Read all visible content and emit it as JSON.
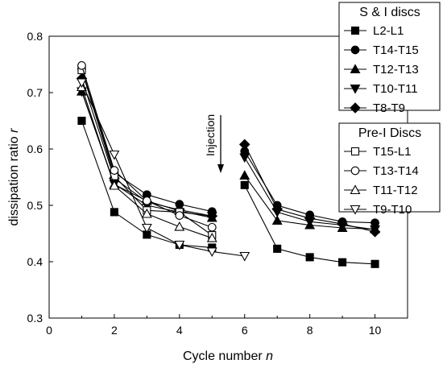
{
  "chart_data": {
    "type": "line",
    "xlabel_prefix": "Cycle number ",
    "xlabel_var": "n",
    "ylabel_prefix": "dissipation ratio ",
    "ylabel_var": "r",
    "xlim": [
      0,
      11
    ],
    "ylim": [
      0.3,
      0.8
    ],
    "xticks": [
      0,
      2,
      4,
      6,
      8,
      10
    ],
    "yticks": [
      0.3,
      0.4,
      0.5,
      0.6,
      0.7,
      0.8
    ],
    "annotation": "Injection",
    "legend_groups": [
      {
        "title": "S & I discs",
        "series": [
          0,
          1,
          2,
          3,
          4
        ]
      },
      {
        "title": "Pre-I Discs",
        "series": [
          5,
          6,
          7,
          8
        ]
      }
    ],
    "series": [
      {
        "name": "L2-L1",
        "marker": "square",
        "filled": true,
        "x": [
          1,
          2,
          3,
          4,
          5,
          6,
          7,
          8,
          9,
          10
        ],
        "y": [
          0.65,
          0.488,
          0.448,
          0.43,
          0.425,
          0.536,
          0.423,
          0.408,
          0.399,
          0.396
        ]
      },
      {
        "name": "T14-T15",
        "marker": "circle",
        "filled": true,
        "x": [
          1,
          2,
          3,
          4,
          5,
          6,
          7,
          8,
          9,
          10
        ],
        "y": [
          0.742,
          0.558,
          0.519,
          0.502,
          0.489,
          0.596,
          0.5,
          0.483,
          0.471,
          0.469
        ]
      },
      {
        "name": "T12-T13",
        "marker": "triangle-up",
        "filled": true,
        "x": [
          1,
          2,
          3,
          4,
          5,
          6,
          7,
          8,
          9,
          10
        ],
        "y": [
          0.702,
          0.537,
          0.508,
          0.49,
          0.478,
          0.553,
          0.473,
          0.465,
          0.46,
          0.458
        ]
      },
      {
        "name": "T10-T11",
        "marker": "triangle-down",
        "filled": true,
        "x": [
          1,
          2,
          3,
          4,
          5,
          6,
          7,
          8,
          9,
          10
        ],
        "y": [
          0.702,
          0.538,
          0.5,
          0.488,
          0.481,
          0.585,
          0.488,
          0.471,
          0.465,
          0.457
        ]
      },
      {
        "name": "T8-T9",
        "marker": "diamond",
        "filled": true,
        "x": [
          1,
          2,
          3,
          4,
          5,
          6,
          7,
          8,
          9,
          10
        ],
        "y": [
          0.725,
          0.548,
          0.506,
          0.492,
          0.481,
          0.608,
          0.493,
          0.477,
          0.467,
          0.453
        ]
      },
      {
        "name": "T15-L1",
        "marker": "square",
        "filled": false,
        "x": [
          1,
          2,
          3,
          4,
          5
        ],
        "y": [
          0.74,
          0.552,
          0.491,
          0.488,
          0.447
        ]
      },
      {
        "name": "T13-T14",
        "marker": "circle",
        "filled": false,
        "x": [
          1,
          2,
          3,
          4,
          5
        ],
        "y": [
          0.748,
          0.562,
          0.508,
          0.482,
          0.461
        ]
      },
      {
        "name": "T11-T12",
        "marker": "triangle-up",
        "filled": false,
        "x": [
          1,
          2,
          3,
          4,
          5
        ],
        "y": [
          0.71,
          0.535,
          0.485,
          0.462,
          0.442
        ]
      },
      {
        "name": "T9-T10",
        "marker": "triangle-down",
        "filled": false,
        "x": [
          1,
          2,
          3,
          4,
          5,
          6
        ],
        "y": [
          0.718,
          0.59,
          0.46,
          0.43,
          0.418,
          0.41
        ]
      }
    ]
  }
}
